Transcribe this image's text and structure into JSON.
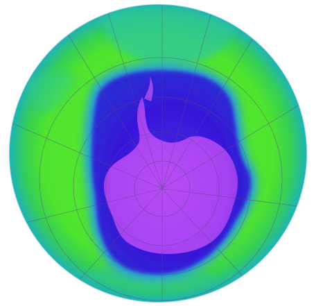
{
  "map": {
    "projection": "polar-orthographic",
    "hemisphere": "south",
    "graticule": true,
    "colors": {
      "background": "#ffffff",
      "globe_edge": "#1fb3b5",
      "outer_field": "#52e62d",
      "mid_field": "#36d24a",
      "teal_band": "#23c0a8",
      "hole_rim": "#2aa3d8",
      "hole_blue": "#3a1fdc",
      "hole_deep": "#2d13c8",
      "antarctica_fill": "#a040f0",
      "antarctica_core": "#b548f4",
      "grid_line": "#5c4a8a"
    }
  }
}
